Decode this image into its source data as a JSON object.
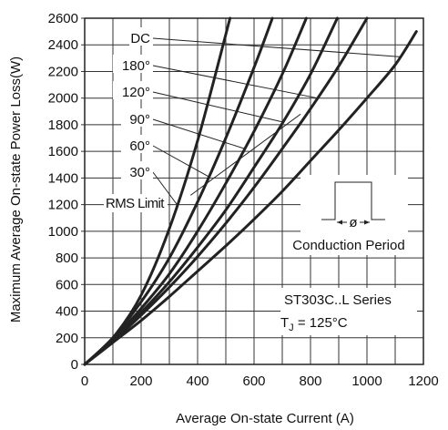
{
  "chart_data": {
    "type": "line",
    "title": "",
    "xlabel": "Average On-state Current (A)",
    "ylabel": "Maximum Average On-state Power Loss(W)",
    "xlim": [
      0,
      1200
    ],
    "ylim": [
      0,
      2600
    ],
    "x_ticks": [
      "0",
      "200",
      "400",
      "600",
      "800",
      "1000",
      "1200"
    ],
    "y_ticks": [
      "0",
      "200",
      "400",
      "600",
      "800",
      "1000",
      "1200",
      "1400",
      "1600",
      "1800",
      "2000",
      "2200",
      "2400",
      "2600"
    ],
    "grid": true,
    "series": [
      {
        "name": "30°",
        "x": [
          0,
          100,
          200,
          300,
          400,
          515
        ],
        "y": [
          0,
          200,
          520,
          1020,
          1680,
          2600
        ]
      },
      {
        "name": "60°",
        "x": [
          0,
          100,
          200,
          300,
          400,
          500,
          600,
          665
        ],
        "y": [
          0,
          200,
          470,
          800,
          1220,
          1700,
          2230,
          2600
        ]
      },
      {
        "name": "90°",
        "x": [
          0,
          100,
          200,
          300,
          400,
          500,
          600,
          700,
          785
        ],
        "y": [
          0,
          190,
          420,
          680,
          1000,
          1360,
          1750,
          2180,
          2600
        ]
      },
      {
        "name": "120°",
        "x": [
          0,
          100,
          200,
          300,
          400,
          500,
          600,
          700,
          800,
          895
        ],
        "y": [
          0,
          185,
          390,
          620,
          880,
          1160,
          1480,
          1810,
          2180,
          2600
        ]
      },
      {
        "name": "180°",
        "x": [
          0,
          100,
          200,
          300,
          400,
          500,
          600,
          700,
          800,
          900,
          1000
        ],
        "y": [
          0,
          175,
          370,
          580,
          810,
          1060,
          1330,
          1620,
          1920,
          2240,
          2600
        ]
      },
      {
        "name": "DC",
        "x": [
          0,
          100,
          200,
          300,
          400,
          500,
          600,
          700,
          800,
          900,
          1000,
          1100,
          1175
        ],
        "y": [
          0,
          165,
          330,
          510,
          700,
          890,
          1090,
          1300,
          1530,
          1760,
          2000,
          2250,
          2500
        ]
      }
    ],
    "rms_limit": {
      "label": "RMS Limit",
      "x": [
        375,
        765
      ],
      "y": [
        1270,
        1880
      ]
    },
    "annotations": {
      "conduction_period": "Conduction Period",
      "phi": "ø",
      "series_name": "ST303C..L Series",
      "tj": "T",
      "tj_sub": "J",
      "tj_value": " = 125°C"
    }
  }
}
